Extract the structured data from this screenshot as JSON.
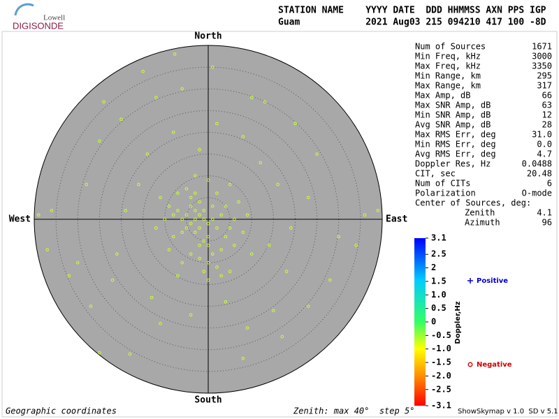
{
  "logo": {
    "line1": "Lowell",
    "line2": "DIGISONDE"
  },
  "header": {
    "line1": "STATION NAME    YYYY DATE  DDD HHMMSS AXN PPS IGP",
    "line2": "Guam            2021 Aug03 215 094210 417 100 -8D"
  },
  "stats": [
    {
      "label": "Num of Sources",
      "value": "1671"
    },
    {
      "label": "Min Freq, kHz",
      "value": "3000"
    },
    {
      "label": "Max Freq, kHz",
      "value": "3350"
    },
    {
      "label": "Min Range, km",
      "value": "295"
    },
    {
      "label": "Max Range, km",
      "value": "317"
    },
    {
      "label": "Max Amp, dB",
      "value": "66"
    },
    {
      "label": "Max SNR Amp, dB",
      "value": "63"
    },
    {
      "label": "Min SNR Amp, dB",
      "value": "12"
    },
    {
      "label": "Avg SNR Amp, dB",
      "value": "28"
    },
    {
      "label": "Max RMS Err, deg",
      "value": "31.0"
    },
    {
      "label": "Min RMS Err, deg",
      "value": "0.0"
    },
    {
      "label": "Avg RMS Err, deg",
      "value": "4.7"
    },
    {
      "label": "Doppler Res, Hz",
      "value": "0.0488"
    },
    {
      "label": "CIT, sec",
      "value": "20.48"
    },
    {
      "label": "Num of CITs",
      "value": "6"
    },
    {
      "label": "Polarization",
      "value": "O-mode"
    }
  ],
  "center": {
    "title": "Center of Sources, deg:",
    "zenith_label": "Zenith",
    "zenith": "4.1",
    "azimuth_label": "Azimuth",
    "azimuth": "96"
  },
  "footer": {
    "left": "Geographic coordinates",
    "middle": "Zenith: max 40°  step 5°",
    "right": "ShowSkymap v 1.0  SD v 5.1"
  },
  "chart_data": {
    "type": "scatter",
    "directions": {
      "north": "North",
      "south": "South",
      "west": "West",
      "east": "East"
    },
    "xlim": [
      -40,
      40
    ],
    "ylim": [
      -40,
      40
    ],
    "rings": [
      5,
      10,
      15,
      20,
      25,
      30,
      35
    ],
    "series": [
      {
        "color": "#ccff33",
        "x": [
          -3,
          -2,
          -4,
          -1,
          -3,
          -5,
          -2,
          0,
          -4,
          -6,
          -1,
          -3,
          1,
          -2,
          -5,
          0,
          -7,
          2,
          -4,
          -1,
          -6,
          1,
          -8,
          3,
          -3,
          0,
          -2,
          1,
          0,
          -1,
          2,
          0,
          -2,
          3,
          4,
          5,
          6,
          4,
          2,
          -5,
          -8,
          -9,
          -10,
          -7,
          3,
          -4,
          -6,
          -9,
          6,
          8,
          9,
          7,
          5,
          0,
          -3,
          -11,
          -12,
          -7,
          5,
          10,
          -7.7,
          -15,
          1,
          -12,
          -20,
          -25,
          -36,
          -37,
          -32,
          -27,
          -25,
          -18,
          -11,
          -22,
          -16,
          -19,
          -14,
          -8,
          2,
          8,
          12,
          16,
          14,
          19,
          23,
          25,
          20,
          13,
          30,
          34,
          28,
          23,
          15,
          9,
          8,
          17,
          4,
          -4,
          -13,
          -6,
          -2,
          -21,
          36,
          39,
          -39,
          18,
          -28,
          -30,
          10,
          -24
        ],
        "y": [
          0,
          1,
          -1,
          0,
          2,
          1,
          -2,
          -1,
          3,
          0,
          2,
          -3,
          0,
          4,
          -2,
          -4,
          2,
          -2,
          5,
          -5,
          -3,
          3,
          1,
          1,
          6,
          -6,
          -6,
          -8,
          -10,
          -12,
          -11,
          -14,
          -9,
          -7,
          -4,
          -2,
          0,
          3,
          6,
          7,
          -4,
          3,
          0,
          6,
          -13,
          -8,
          -10,
          -7,
          -6,
          -3,
          1,
          4,
          8,
          9,
          10,
          5,
          -2,
          -13,
          -12,
          -8,
          38,
          34,
          35,
          28,
          23,
          18,
          2,
          -7,
          -13,
          -20,
          -30.7,
          -31,
          -24,
          -14,
          8,
          2,
          15,
          20,
          22,
          19,
          13,
          8,
          -6,
          -2,
          5,
          15,
          22,
          27,
          -4,
          -6,
          -14,
          -20,
          -21,
          -25,
          -32,
          -27,
          -19,
          -22,
          -18,
          30,
          16,
          -8,
          1,
          2,
          1,
          -12,
          8,
          -10,
          28,
          27
        ]
      }
    ],
    "legend": [
      {
        "label": "Positive",
        "color": "#0000cc"
      },
      {
        "label": "Negative",
        "color": "#cc0000"
      }
    ],
    "colorbar": {
      "label": "Doppler,Hz",
      "lim": [
        -3.1,
        3.1
      ],
      "ticks": [
        3.1,
        2.5,
        2,
        1.5,
        {
          "value": 1,
          "label": "1.0"
        },
        0.5,
        0,
        -0.5,
        {
          "value": -1,
          "label": "-1.0"
        },
        -1.5,
        {
          "value": -2,
          "label": "-2.0"
        },
        -2.5,
        -3.1
      ]
    }
  }
}
